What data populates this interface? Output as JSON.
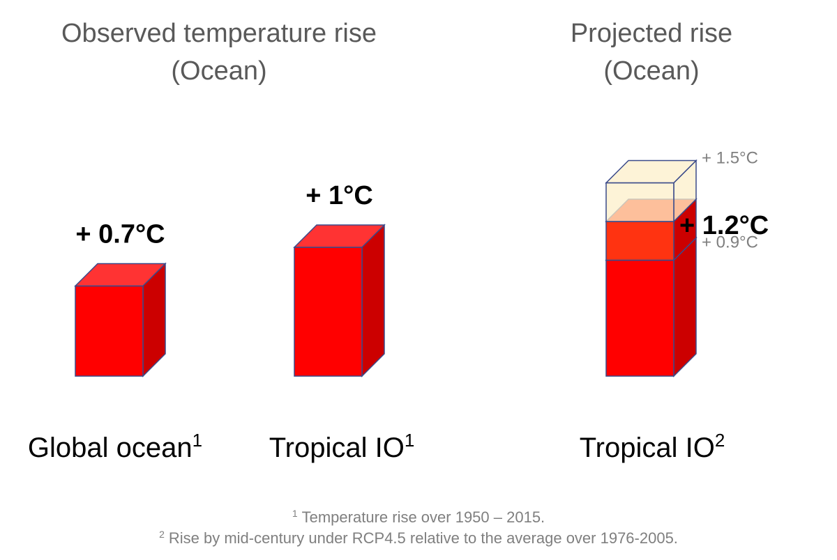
{
  "chart_data": {
    "type": "bar3d",
    "titles": [
      [
        "Observed temperature rise",
        "(Ocean)"
      ],
      [
        "Projected rise",
        "(Ocean)"
      ]
    ],
    "categories": [
      "Global ocean",
      "Tropical IO",
      "Tropical IO"
    ],
    "category_notes": [
      "1",
      "1",
      "2"
    ],
    "values": [
      0.7,
      1,
      1.2
    ],
    "value_labels": [
      "+ 0.7°C",
      "+ 1°C",
      "+ 1.2°C"
    ],
    "ranges": [
      null,
      null,
      [
        0.9,
        1.5
      ]
    ],
    "range_labels": [
      null,
      null,
      [
        "+ 0.9°C",
        "+ 1.5°C"
      ]
    ],
    "color": "#ff0000",
    "side_color": "#cc0000",
    "top_color": "#ff3333",
    "range_low_color": "#ff3311",
    "range_high_color": "#fcefc9",
    "footnotes": [
      {
        "mark": "1",
        "text": "Temperature rise over 1950 – 2015."
      },
      {
        "mark": "2",
        "text": "Rise by mid-century under RCP4.5 relative to the average over 1976-2005."
      }
    ]
  }
}
